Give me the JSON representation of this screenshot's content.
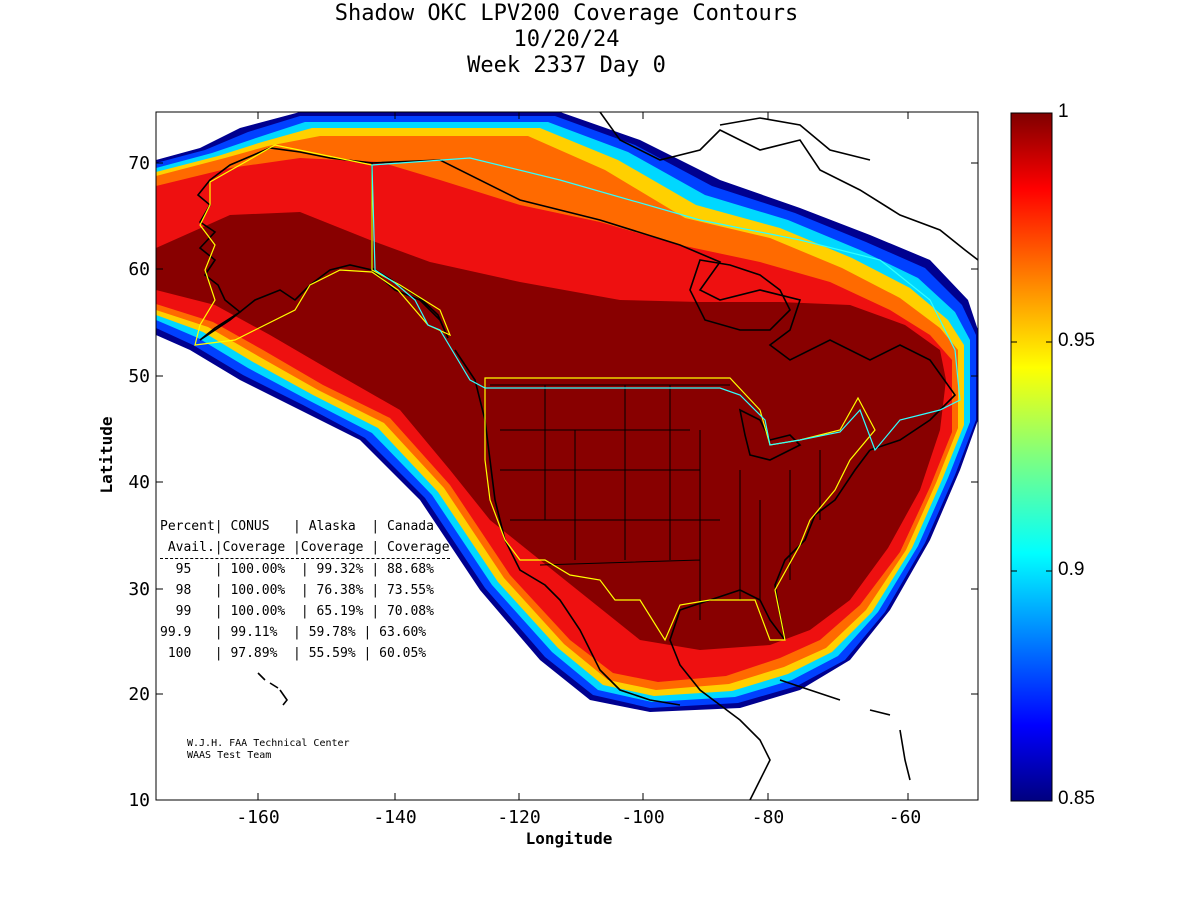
{
  "title": {
    "line1": "Shadow OKC LPV200 Coverage Contours",
    "line2": "10/20/24",
    "line3": "Week 2337 Day 0"
  },
  "axes": {
    "xlabel": "Longitude",
    "ylabel": "Latitude",
    "x_ticks": [
      "-160",
      "-140",
      "-120",
      "-100",
      "-80",
      "-60"
    ],
    "y_ticks": [
      "70",
      "60",
      "50",
      "40",
      "30",
      "20",
      "10"
    ],
    "xlim": [
      -175,
      -50
    ],
    "ylim": [
      10,
      75
    ]
  },
  "colorbar": {
    "labels": [
      "1",
      "0.95",
      "0.9",
      "0.85"
    ],
    "range": [
      0.85,
      1.0
    ],
    "colormap": "jet"
  },
  "stats_table": {
    "header1": "Percent| CONUS   | Alaska  | Canada",
    "header2": " Avail.|Coverage |Coverage | Coverage",
    "rows": [
      "  95   | 100.00%  | 99.32% | 88.68%",
      "  98   | 100.00%  | 76.38% | 73.55%",
      "  99   | 100.00%  | 65.19% | 70.08%",
      "99.9   | 99.11%  | 59.78% | 63.60%",
      " 100   | 97.89%  | 55.59% | 60.05%"
    ]
  },
  "credit": {
    "line1": "W.J.H. FAA Technical Center",
    "line2": "WAAS Test Team"
  },
  "chart_data": {
    "type": "heatmap",
    "title": "Shadow OKC LPV200 Coverage Contours",
    "xlabel": "Longitude",
    "ylabel": "Latitude",
    "xlim": [
      -175,
      -50
    ],
    "ylim": [
      10,
      75
    ],
    "colorbar_range": [
      0.85,
      1.0
    ],
    "grid": false,
    "series": [
      {
        "name": "CONUS",
        "availability_percent": [
          95,
          98,
          99,
          99.9,
          100
        ],
        "coverage_percent": [
          100.0,
          100.0,
          100.0,
          99.11,
          97.89
        ]
      },
      {
        "name": "Alaska",
        "availability_percent": [
          95,
          98,
          99,
          99.9,
          100
        ],
        "coverage_percent": [
          99.32,
          76.38,
          65.19,
          59.78,
          55.59
        ]
      },
      {
        "name": "Canada",
        "availability_percent": [
          95,
          98,
          99,
          99.9,
          100
        ],
        "coverage_percent": [
          88.68,
          73.55,
          70.08,
          63.6,
          60.05
        ]
      }
    ]
  }
}
